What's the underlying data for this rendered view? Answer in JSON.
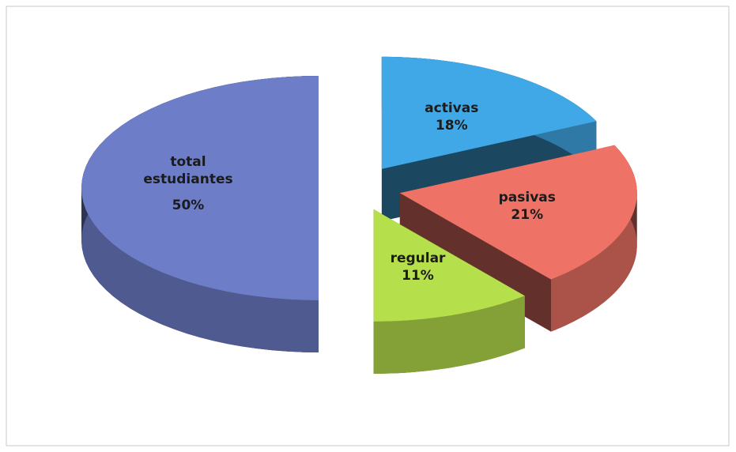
{
  "chart_data": {
    "type": "pie3d",
    "categories": [
      "activas",
      "pasivas",
      "regular",
      "total estudiantes"
    ],
    "values": [
      18,
      21,
      11,
      50
    ],
    "value_labels": [
      "18%",
      "21%",
      "11%",
      "50%"
    ],
    "colors": [
      "#40a8e6",
      "#ee7366",
      "#b6e04b",
      "#6d7dc8"
    ]
  }
}
